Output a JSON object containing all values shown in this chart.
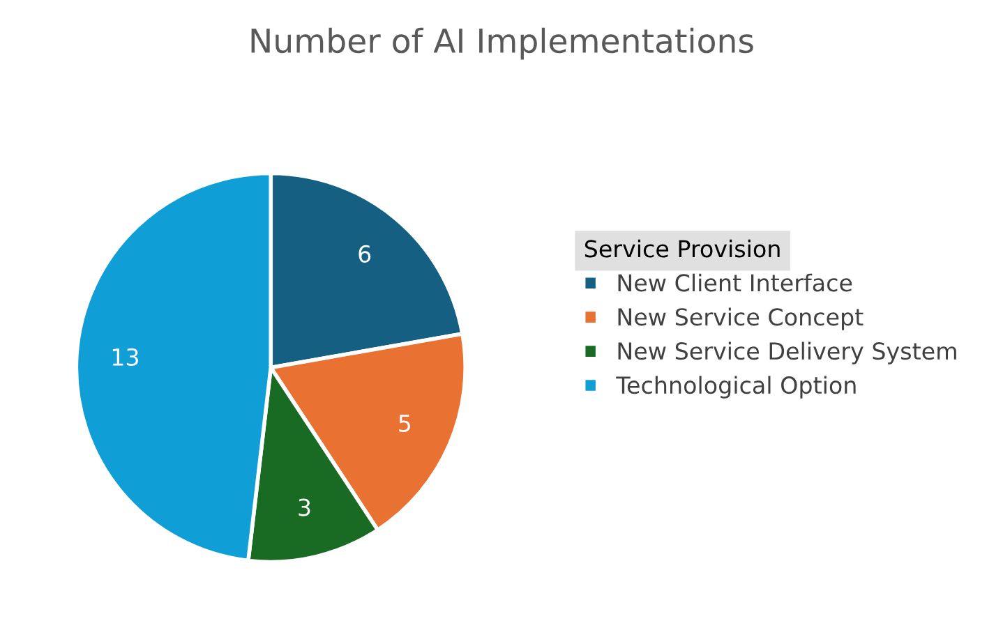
{
  "chart_data": {
    "type": "pie",
    "title": "Number of AI Implementations",
    "legend_title": "Service Provision",
    "categories": [
      "New Client Interface",
      "New Service Concept",
      "New Service Delivery System",
      "Technological Option"
    ],
    "values": [
      6,
      5,
      3,
      13
    ],
    "colors": [
      "#156082",
      "#e97132",
      "#196b24",
      "#0f9ed5"
    ],
    "data_labels": true,
    "legend": "right"
  }
}
